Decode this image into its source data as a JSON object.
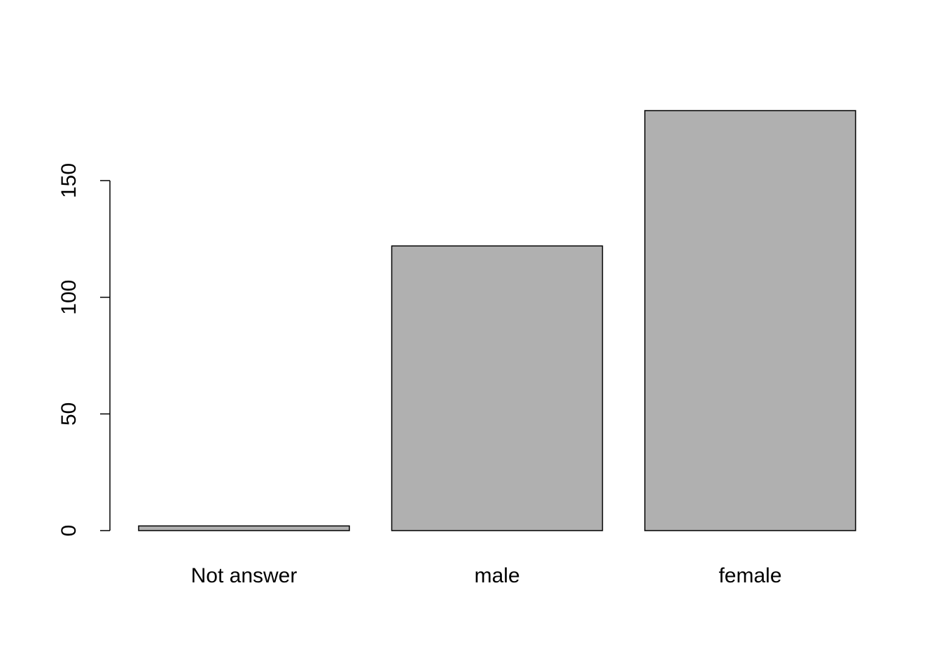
{
  "chart_data": {
    "type": "bar",
    "categories": [
      "Not answer",
      "male",
      "female"
    ],
    "values": [
      2,
      122,
      180
    ],
    "color": "#b0b0b0",
    "ylim": [
      0,
      180
    ],
    "yticks": [
      0,
      50,
      100,
      150
    ]
  }
}
